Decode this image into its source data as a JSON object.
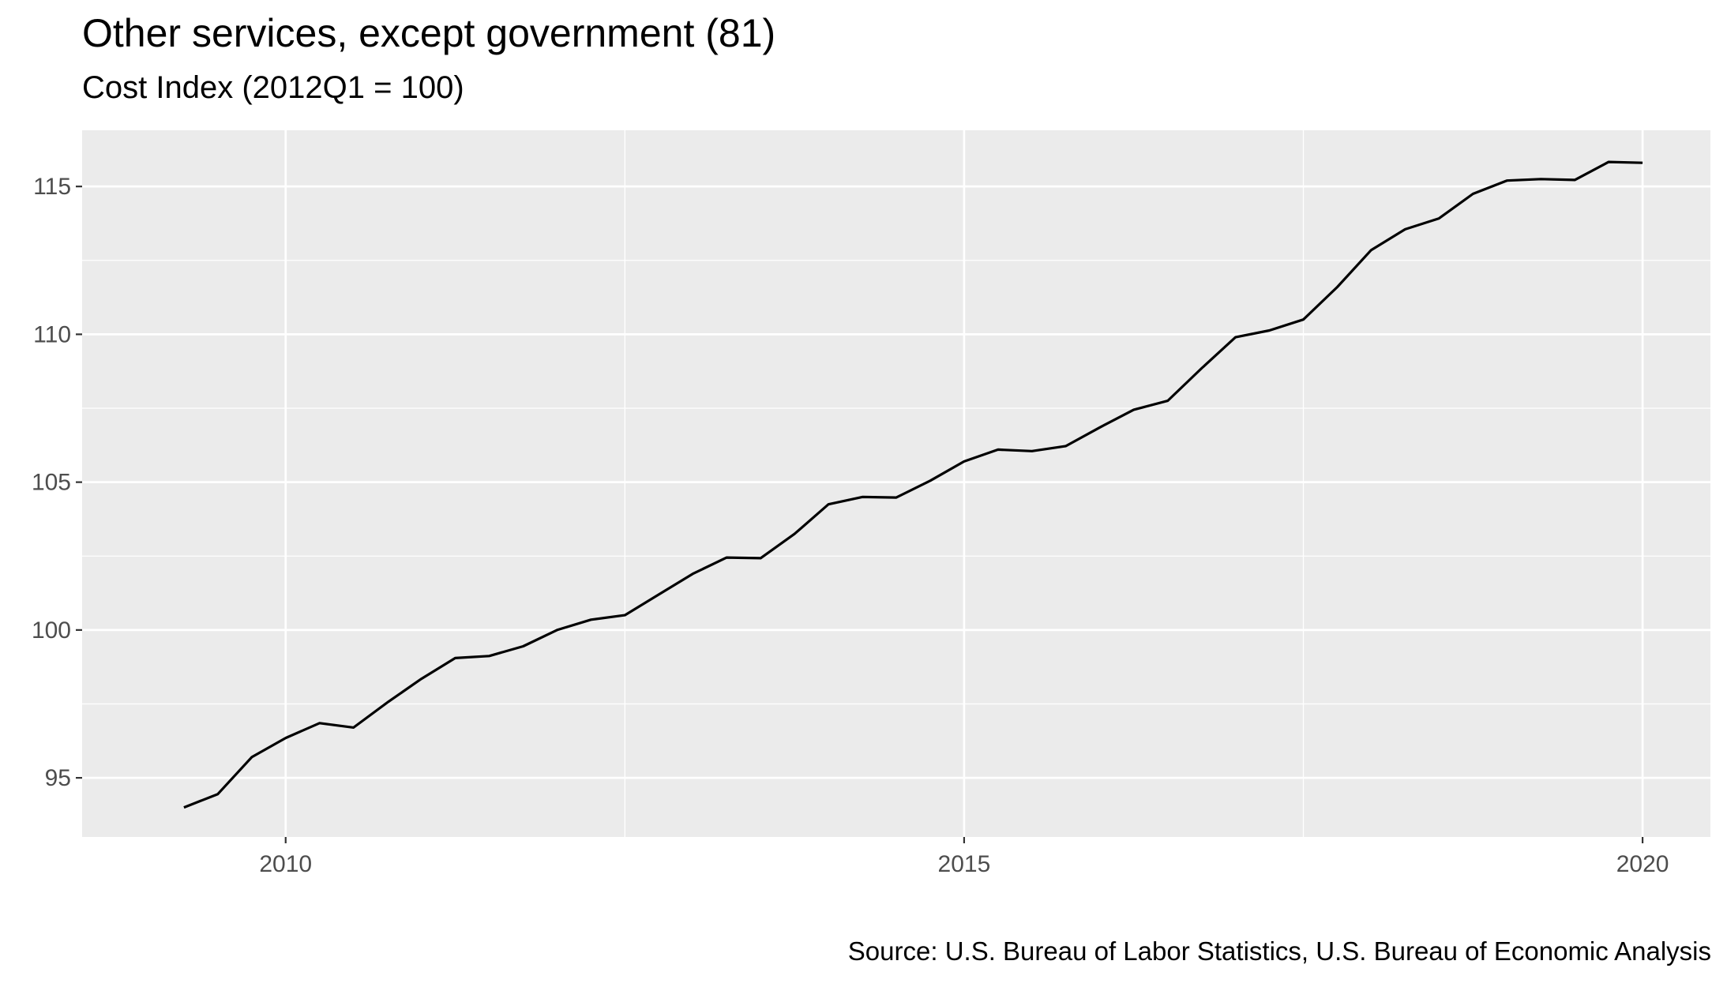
{
  "chart_data": {
    "type": "line",
    "title": "Other services, except government (81)",
    "subtitle": "Cost Index (2012Q1 = 100)",
    "caption": "Source: U.S. Bureau of Labor Statistics, U.S. Bureau of Economic Analysis",
    "xlabel": "",
    "ylabel": "",
    "x_ticks": [
      2010,
      2015,
      2020
    ],
    "y_ticks": [
      95,
      100,
      105,
      110,
      115
    ],
    "xlim": [
      2008.5,
      2020.5
    ],
    "ylim": [
      93.0,
      116.9
    ],
    "grid": true,
    "series": [
      {
        "color": "#000000",
        "x": [
          2009.25,
          2009.5,
          2009.75,
          2010.0,
          2010.25,
          2010.5,
          2010.75,
          2011.0,
          2011.25,
          2011.5,
          2011.75,
          2012.0,
          2012.25,
          2012.5,
          2012.75,
          2013.0,
          2013.25,
          2013.5,
          2013.75,
          2014.0,
          2014.25,
          2014.5,
          2014.75,
          2015.0,
          2015.25,
          2015.5,
          2015.75,
          2016.0,
          2016.25,
          2016.5,
          2016.75,
          2017.0,
          2017.25,
          2017.5,
          2017.75,
          2018.0,
          2018.25,
          2018.5,
          2018.75,
          2019.0,
          2019.25,
          2019.5,
          2019.75,
          2020.0
        ],
        "values": [
          94.0,
          94.45,
          95.7,
          96.35,
          96.85,
          96.7,
          97.55,
          98.35,
          99.05,
          99.12,
          99.45,
          100.0,
          100.35,
          100.5,
          101.2,
          101.9,
          102.45,
          102.43,
          103.25,
          104.25,
          104.5,
          104.48,
          105.05,
          105.7,
          106.1,
          106.05,
          106.22,
          106.85,
          107.45,
          107.75,
          108.85,
          109.9,
          110.13,
          110.5,
          111.6,
          112.85,
          113.55,
          113.92,
          114.75,
          115.2,
          115.25,
          115.22,
          115.83,
          115.8
        ]
      }
    ]
  }
}
